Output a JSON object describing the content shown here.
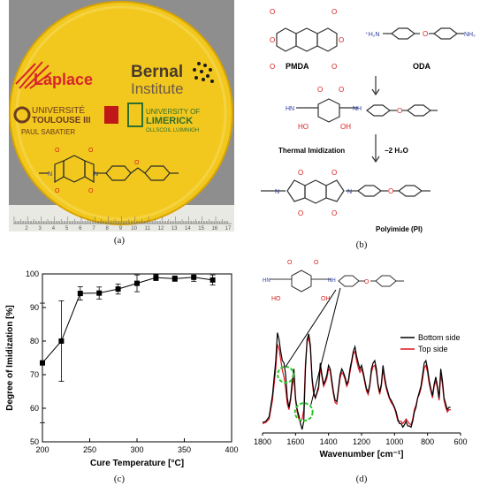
{
  "captions": {
    "a": "(a)",
    "b": "(b)",
    "c": "(c)",
    "d": "(d)"
  },
  "photo": {
    "logos": {
      "laplace": "Laplace",
      "bernal_line1": "Bernal",
      "bernal_line2": "Institute",
      "toulouse_line1": "UNIVERSITÉ",
      "toulouse_line2": "TOULOUSE III",
      "toulouse_line3": "PAUL SABATIER",
      "limerick_line1": "UNIVERSITY OF",
      "limerick_line2": "LIMERICK",
      "limerick_line3": "OLLSCOIL LUIMNIGH"
    },
    "ruler_numbers": [
      "2",
      "3",
      "4",
      "5",
      "6",
      "7",
      "8",
      "9",
      "10",
      "11",
      "12",
      "13",
      "14",
      "15",
      "16",
      "17"
    ],
    "colors": {
      "film": "#f2c81e",
      "film_edge": "#d9a400",
      "background": "#8c8c8c"
    }
  },
  "scheme": {
    "pmda": "PMDA",
    "oda": "ODA",
    "thermal": "Thermal Imidization",
    "water": "−2 H₂O",
    "product": "Polyimide (PI)",
    "atoms": {
      "O": "O",
      "N": "N",
      "HN": "HN",
      "NH": "NH",
      "OH": "OH",
      "HO": "HO",
      "H2N": "⁺H₂N",
      "NH2": "NH₂"
    }
  },
  "chart_data": [
    {
      "type": "scatter",
      "xlabel": "Cure Temperature [°C]",
      "ylabel": "Degree of Imidization [%]",
      "xlim": [
        200,
        400
      ],
      "ylim": [
        50,
        100
      ],
      "xticks": [
        200,
        250,
        300,
        350,
        400
      ],
      "yticks": [
        50,
        60,
        70,
        80,
        90,
        100
      ],
      "points": [
        {
          "x": 200,
          "y": 73.5,
          "err": 17.8
        },
        {
          "x": 220,
          "y": 80,
          "err": 12
        },
        {
          "x": 240,
          "y": 94.2,
          "err": 2
        },
        {
          "x": 260,
          "y": 94.3,
          "err": 1.8
        },
        {
          "x": 280,
          "y": 95.5,
          "err": 1.5
        },
        {
          "x": 300,
          "y": 97.2,
          "err": 2.5
        },
        {
          "x": 320,
          "y": 98.9,
          "err": 0.9
        },
        {
          "x": 340,
          "y": 98.6,
          "err": 0.8
        },
        {
          "x": 360,
          "y": 99,
          "err": 1.2
        },
        {
          "x": 380,
          "y": 98.2,
          "err": 1.5
        }
      ]
    },
    {
      "type": "line",
      "xlabel": "Wavenumber [cm⁻¹]",
      "xlim": [
        1800,
        600
      ],
      "xticks": [
        1800,
        1600,
        1400,
        1200,
        1000,
        800,
        600
      ],
      "legend": "top-right",
      "series": [
        {
          "name": "Bottom side",
          "color": "#000000",
          "x": [
            1800,
            1780,
            1760,
            1740,
            1720,
            1710,
            1700,
            1690,
            1680,
            1670,
            1660,
            1650,
            1640,
            1630,
            1620,
            1610,
            1600,
            1590,
            1580,
            1570,
            1560,
            1550,
            1540,
            1530,
            1520,
            1510,
            1500,
            1490,
            1480,
            1470,
            1460,
            1450,
            1440,
            1430,
            1420,
            1410,
            1400,
            1390,
            1380,
            1370,
            1360,
            1350,
            1340,
            1330,
            1320,
            1310,
            1300,
            1290,
            1280,
            1270,
            1260,
            1250,
            1240,
            1230,
            1220,
            1210,
            1200,
            1190,
            1180,
            1170,
            1160,
            1150,
            1140,
            1130,
            1120,
            1110,
            1100,
            1090,
            1080,
            1070,
            1060,
            1050,
            1040,
            1030,
            1020,
            1010,
            1000,
            990,
            980,
            970,
            960,
            950,
            940,
            930,
            920,
            910,
            900,
            890,
            880,
            870,
            860,
            850,
            840,
            830,
            820,
            810,
            800,
            790,
            780,
            770,
            760,
            750,
            740,
            730,
            720,
            710,
            700,
            690,
            680,
            670,
            660
          ],
          "y": [
            0.09,
            0.1,
            0.14,
            0.32,
            0.62,
            0.86,
            0.8,
            0.7,
            0.62,
            0.6,
            0.5,
            0.3,
            0.22,
            0.3,
            0.45,
            0.55,
            0.3,
            0.2,
            0.15,
            0.08,
            0.03,
            0.1,
            0.55,
            0.8,
            0.85,
            0.75,
            0.48,
            0.35,
            0.3,
            0.35,
            0.4,
            0.6,
            0.5,
            0.42,
            0.45,
            0.5,
            0.58,
            0.55,
            0.45,
            0.35,
            0.28,
            0.27,
            0.38,
            0.5,
            0.55,
            0.52,
            0.48,
            0.42,
            0.45,
            0.55,
            0.62,
            0.7,
            0.74,
            0.66,
            0.6,
            0.55,
            0.58,
            0.52,
            0.45,
            0.38,
            0.35,
            0.42,
            0.55,
            0.6,
            0.62,
            0.55,
            0.42,
            0.35,
            0.42,
            0.58,
            0.48,
            0.4,
            0.35,
            0.3,
            0.28,
            0.25,
            0.22,
            0.18,
            0.12,
            0.08,
            0.08,
            0.05,
            0.07,
            0.1,
            0.06,
            0.06,
            0.05,
            0.1,
            0.18,
            0.22,
            0.3,
            0.35,
            0.4,
            0.5,
            0.6,
            0.62,
            0.55,
            0.45,
            0.38,
            0.32,
            0.42,
            0.48,
            0.4,
            0.3,
            0.55,
            0.45,
            0.3,
            0.25,
            0.2,
            0.22,
            0.22
          ]
        },
        {
          "name": "Top side",
          "color": "#e0141e",
          "x": [
            1800,
            1780,
            1760,
            1740,
            1720,
            1710,
            1700,
            1690,
            1680,
            1670,
            1660,
            1650,
            1640,
            1630,
            1620,
            1610,
            1600,
            1590,
            1580,
            1570,
            1560,
            1550,
            1540,
            1530,
            1520,
            1510,
            1500,
            1490,
            1480,
            1470,
            1460,
            1450,
            1440,
            1430,
            1420,
            1410,
            1400,
            1390,
            1380,
            1370,
            1360,
            1350,
            1340,
            1330,
            1320,
            1310,
            1300,
            1290,
            1280,
            1270,
            1260,
            1250,
            1240,
            1230,
            1220,
            1210,
            1200,
            1190,
            1180,
            1170,
            1160,
            1150,
            1140,
            1130,
            1120,
            1110,
            1100,
            1090,
            1080,
            1070,
            1060,
            1050,
            1040,
            1030,
            1020,
            1010,
            1000,
            990,
            980,
            970,
            960,
            950,
            940,
            930,
            920,
            910,
            900,
            890,
            880,
            870,
            860,
            850,
            840,
            830,
            820,
            810,
            800,
            790,
            780,
            770,
            760,
            750,
            740,
            730,
            720,
            710,
            700,
            690,
            680,
            670,
            660
          ],
          "y": [
            0.08,
            0.09,
            0.12,
            0.28,
            0.55,
            0.76,
            0.72,
            0.63,
            0.54,
            0.48,
            0.38,
            0.25,
            0.2,
            0.28,
            0.4,
            0.48,
            0.28,
            0.18,
            0.12,
            0.1,
            0.12,
            0.2,
            0.6,
            0.78,
            0.82,
            0.72,
            0.45,
            0.33,
            0.3,
            0.34,
            0.38,
            0.56,
            0.48,
            0.4,
            0.43,
            0.47,
            0.55,
            0.53,
            0.42,
            0.33,
            0.26,
            0.25,
            0.36,
            0.47,
            0.52,
            0.5,
            0.46,
            0.4,
            0.43,
            0.52,
            0.6,
            0.68,
            0.7,
            0.62,
            0.56,
            0.52,
            0.55,
            0.5,
            0.43,
            0.36,
            0.33,
            0.4,
            0.52,
            0.57,
            0.58,
            0.52,
            0.4,
            0.33,
            0.4,
            0.55,
            0.45,
            0.38,
            0.33,
            0.29,
            0.26,
            0.24,
            0.21,
            0.16,
            0.1,
            0.1,
            0.1,
            0.08,
            0.1,
            0.12,
            0.1,
            0.08,
            0.07,
            0.12,
            0.2,
            0.24,
            0.3,
            0.33,
            0.38,
            0.46,
            0.56,
            0.58,
            0.52,
            0.42,
            0.36,
            0.3,
            0.4,
            0.45,
            0.38,
            0.28,
            0.5,
            0.42,
            0.28,
            0.22,
            0.18,
            0.2,
            0.2
          ]
        }
      ]
    }
  ]
}
